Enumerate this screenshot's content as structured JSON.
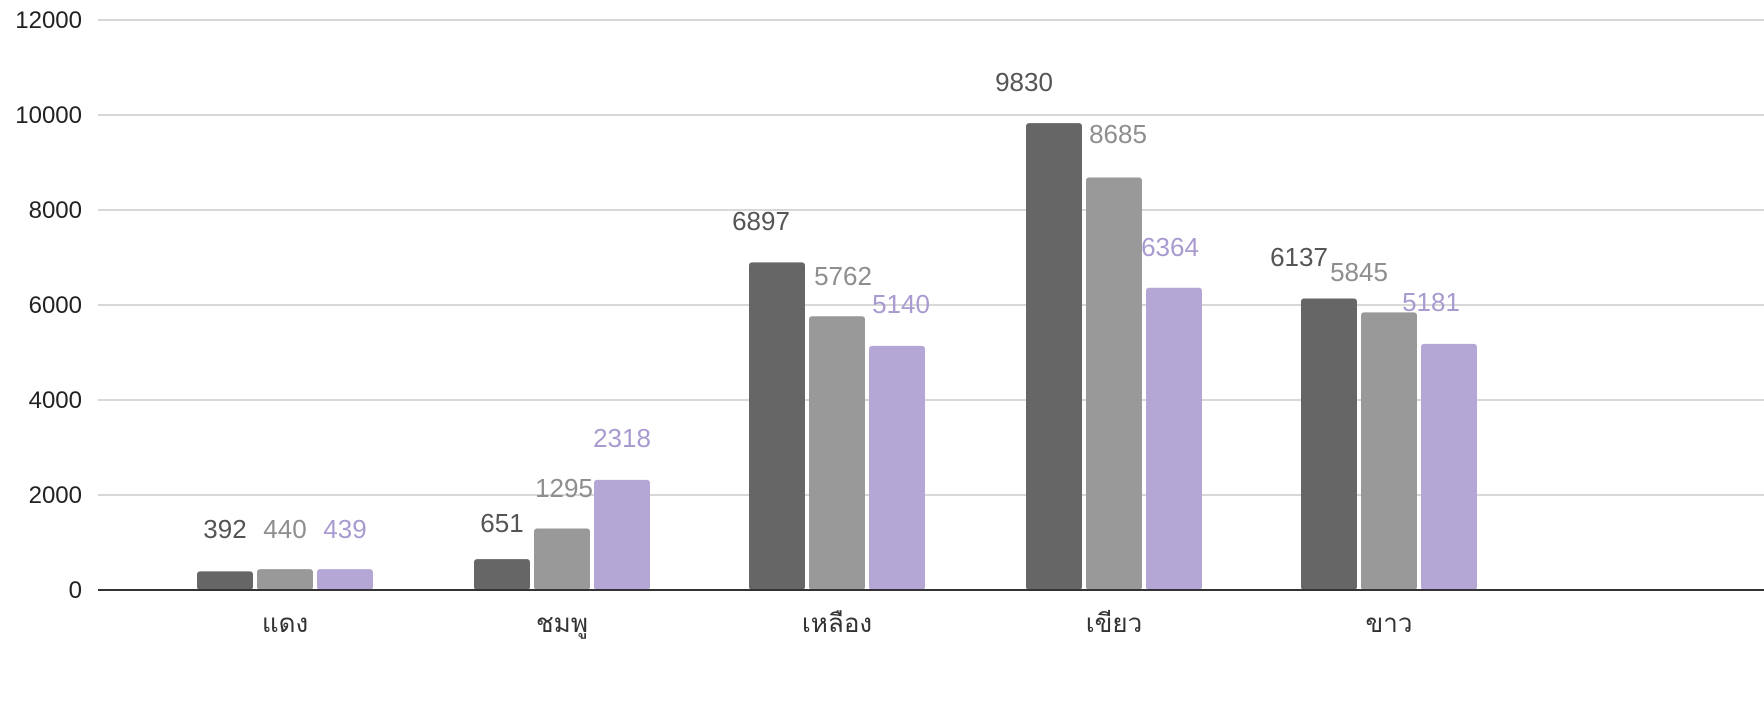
{
  "chart_data": {
    "type": "bar",
    "title": "",
    "xlabel": "",
    "ylabel": "",
    "ylim": [
      0,
      12000
    ],
    "yticks": [
      0,
      2000,
      4000,
      6000,
      8000,
      10000,
      12000
    ],
    "grid": true,
    "legend": "none",
    "categories": [
      "แดง",
      "ชมพู",
      "เหลือง",
      "เขียว",
      "ขาว"
    ],
    "series": [
      {
        "values": [
          392,
          651,
          6897,
          9830,
          6137
        ],
        "color": "#666666",
        "label_color": "#555555"
      },
      {
        "values": [
          440,
          1295,
          5762,
          8685,
          5845
        ],
        "color": "#999999",
        "label_color": "#8e8e8e"
      },
      {
        "values": [
          439,
          2318,
          5140,
          6364,
          5181
        ],
        "color": "#b4a7d6",
        "label_color": "#a99bd0"
      }
    ],
    "data_labels": [
      [
        "392",
        "651",
        "6897",
        "9830",
        "6137"
      ],
      [
        "440",
        "1295",
        "5762",
        "8685",
        "5845"
      ],
      [
        "439",
        "2318",
        "5140",
        "6364",
        "5181"
      ]
    ],
    "colors": {
      "gridline": "#cccccc",
      "axis": "#333333",
      "tick_text": "#222222"
    }
  }
}
